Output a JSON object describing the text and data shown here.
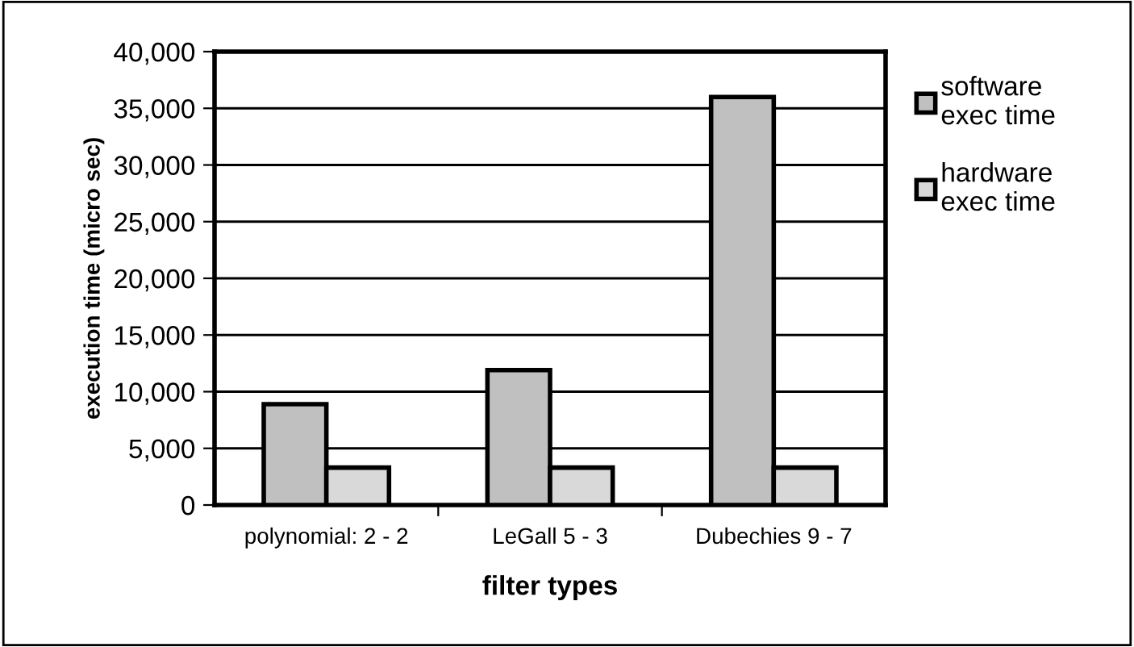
{
  "chart_data": {
    "type": "bar",
    "xlabel": "filter types",
    "ylabel": "execution time (micro sec)",
    "categories": [
      "polynomial: 2 - 2",
      "LeGall 5 - 3",
      "Dubechies 9 - 7"
    ],
    "series": [
      {
        "name": "software\nexec time",
        "color": "#c0c0c0",
        "values": [
          8900,
          11900,
          36000
        ]
      },
      {
        "name": "hardware\nexec time",
        "color": "#d9d9d9",
        "values": [
          3300,
          3300,
          3300
        ]
      }
    ],
    "ylim": [
      0,
      40000
    ],
    "yticks": [
      {
        "value": 0,
        "label": "0"
      },
      {
        "value": 5000,
        "label": "5,000"
      },
      {
        "value": 10000,
        "label": "10,000"
      },
      {
        "value": 15000,
        "label": "15,000"
      },
      {
        "value": 20000,
        "label": "20,000"
      },
      {
        "value": 25000,
        "label": "25,000"
      },
      {
        "value": 30000,
        "label": "30,000"
      },
      {
        "value": 35000,
        "label": "35,000"
      },
      {
        "value": 40000,
        "label": "40,000"
      }
    ],
    "grid": "y",
    "legend": "right"
  }
}
